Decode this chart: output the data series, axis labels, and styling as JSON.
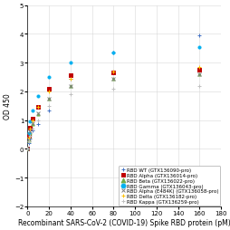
{
  "xlabel": "Recombinant SARS-CoV-2 (COVID-19) Spike RBD protein (pM)",
  "ylabel": "OD 450",
  "xlim": [
    0,
    180
  ],
  "ylim": [
    -2.0,
    5.0
  ],
  "yticks": [
    -2.0,
    -1.0,
    0.0,
    1.0,
    2.0,
    3.0,
    4.0,
    5.0
  ],
  "xticks": [
    0,
    20,
    40,
    60,
    80,
    100,
    120,
    140,
    160,
    180
  ],
  "series": [
    {
      "name": "RBD WT (GTX136090-pro)",
      "color": "#4472C4",
      "marker": "+",
      "linestyle": "--",
      "data_x": [
        0,
        1.25,
        2.5,
        5,
        10,
        20,
        40,
        80,
        160
      ],
      "data_y": [
        0.0,
        0.2,
        0.35,
        0.65,
        0.85,
        1.35,
        2.45,
        3.35,
        3.95
      ]
    },
    {
      "name": "RBD Alpha (GTX136014-pro)",
      "color": "#C00000",
      "marker": "s",
      "linestyle": "-",
      "data_x": [
        0,
        1.25,
        2.5,
        5,
        10,
        20,
        40,
        80,
        160
      ],
      "data_y": [
        0.0,
        0.45,
        0.75,
        1.05,
        1.45,
        2.1,
        2.55,
        2.65,
        2.75
      ]
    },
    {
      "name": "RBD Beta (GTX136022-pro)",
      "color": "#70AD47",
      "marker": "^",
      "linestyle": "-",
      "data_x": [
        0,
        1.25,
        2.5,
        5,
        10,
        20,
        40,
        80,
        160
      ],
      "data_y": [
        0.0,
        0.3,
        0.55,
        0.85,
        1.2,
        1.75,
        2.2,
        2.45,
        2.6
      ]
    },
    {
      "name": "RBD Gamma (GTX136043-pro)",
      "color": "#00B0F0",
      "marker": "o",
      "linestyle": "--",
      "data_x": [
        0,
        1.25,
        2.5,
        5,
        10,
        20,
        40,
        80,
        160
      ],
      "data_y": [
        0.0,
        0.55,
        0.95,
        1.35,
        1.85,
        2.5,
        3.0,
        3.35,
        3.55
      ]
    },
    {
      "name": "RBD Alpha (E484K) (GTX136058-pro)",
      "color": "#808080",
      "marker": "x",
      "linestyle": "-",
      "data_x": [
        0,
        1.25,
        2.5,
        5,
        10,
        20,
        40,
        80,
        160
      ],
      "data_y": [
        0.0,
        0.35,
        0.6,
        0.9,
        1.25,
        1.75,
        2.2,
        2.45,
        2.6
      ]
    },
    {
      "name": "RBD Delta (GTX136182-pro)",
      "color": "#FFC000",
      "marker": "+",
      "linestyle": "-",
      "data_x": [
        0,
        1.25,
        2.5,
        5,
        10,
        20,
        40,
        80,
        160
      ],
      "data_y": [
        0.0,
        0.4,
        0.7,
        1.0,
        1.45,
        2.0,
        2.45,
        2.7,
        2.85
      ]
    },
    {
      "name": "RBD Kappa (GTX136259-pro)",
      "color": "#C0C0C0",
      "marker": "+",
      "linestyle": "-",
      "data_x": [
        0,
        1.25,
        2.5,
        5,
        10,
        20,
        40,
        80,
        160
      ],
      "data_y": [
        0.0,
        0.25,
        0.45,
        0.7,
        1.0,
        1.5,
        1.9,
        2.1,
        2.2
      ]
    }
  ],
  "background_color": "#ffffff",
  "grid_color": "#d8d8d8",
  "legend_fontsize": 4.0,
  "axis_fontsize": 5.5,
  "tick_fontsize": 5.0
}
